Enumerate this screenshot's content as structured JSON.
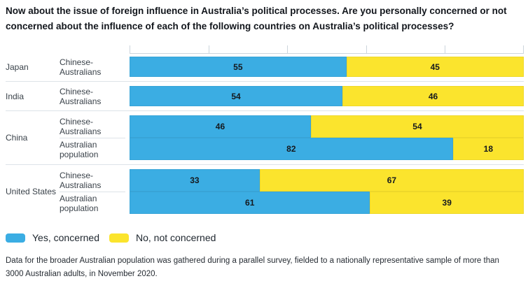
{
  "title": {
    "line1": "Now about the issue of foreign influence in Australia’s political processes. Are you personally concerned or not",
    "line2": "concerned about the influence of each of the following countries on Australia’s political processes?"
  },
  "legend": {
    "items": [
      {
        "label": "Yes, concerned",
        "color": "#3BADE3"
      },
      {
        "label": "No, not concerned",
        "color": "#FBE42D"
      }
    ]
  },
  "footnote": {
    "line1": "Data for the broader Australian population was gathered during a parallel survey, fielded to a nationally representative sample of more than",
    "line2": "3000 Australian adults, in November 2020."
  },
  "chart_data": {
    "type": "bar",
    "orientation": "horizontal",
    "stacked": true,
    "xlim": [
      0,
      100
    ],
    "ticks": [
      0,
      20,
      40,
      60,
      80,
      100
    ],
    "grid": false,
    "legend_position": "bottom-left",
    "series_names": [
      "Yes, concerned",
      "No, not concerned"
    ],
    "colors": {
      "yes": "#3BADE3",
      "no": "#FBE42D"
    },
    "groups": [
      {
        "country": "Japan",
        "rows": [
          {
            "label": "Chinese-Australians",
            "values": [
              55,
              45
            ]
          }
        ]
      },
      {
        "country": "India",
        "rows": [
          {
            "label": "Chinese-Australians",
            "values": [
              54,
              46
            ]
          }
        ]
      },
      {
        "country": "China",
        "rows": [
          {
            "label": "Chinese-Australians",
            "values": [
              46,
              54
            ]
          },
          {
            "label": "Australian population",
            "values": [
              82,
              18
            ]
          }
        ]
      },
      {
        "country": "United States",
        "rows": [
          {
            "label": "Chinese-Australians",
            "values": [
              33,
              67
            ]
          },
          {
            "label": "Australian population",
            "values": [
              61,
              39
            ]
          }
        ]
      }
    ]
  }
}
